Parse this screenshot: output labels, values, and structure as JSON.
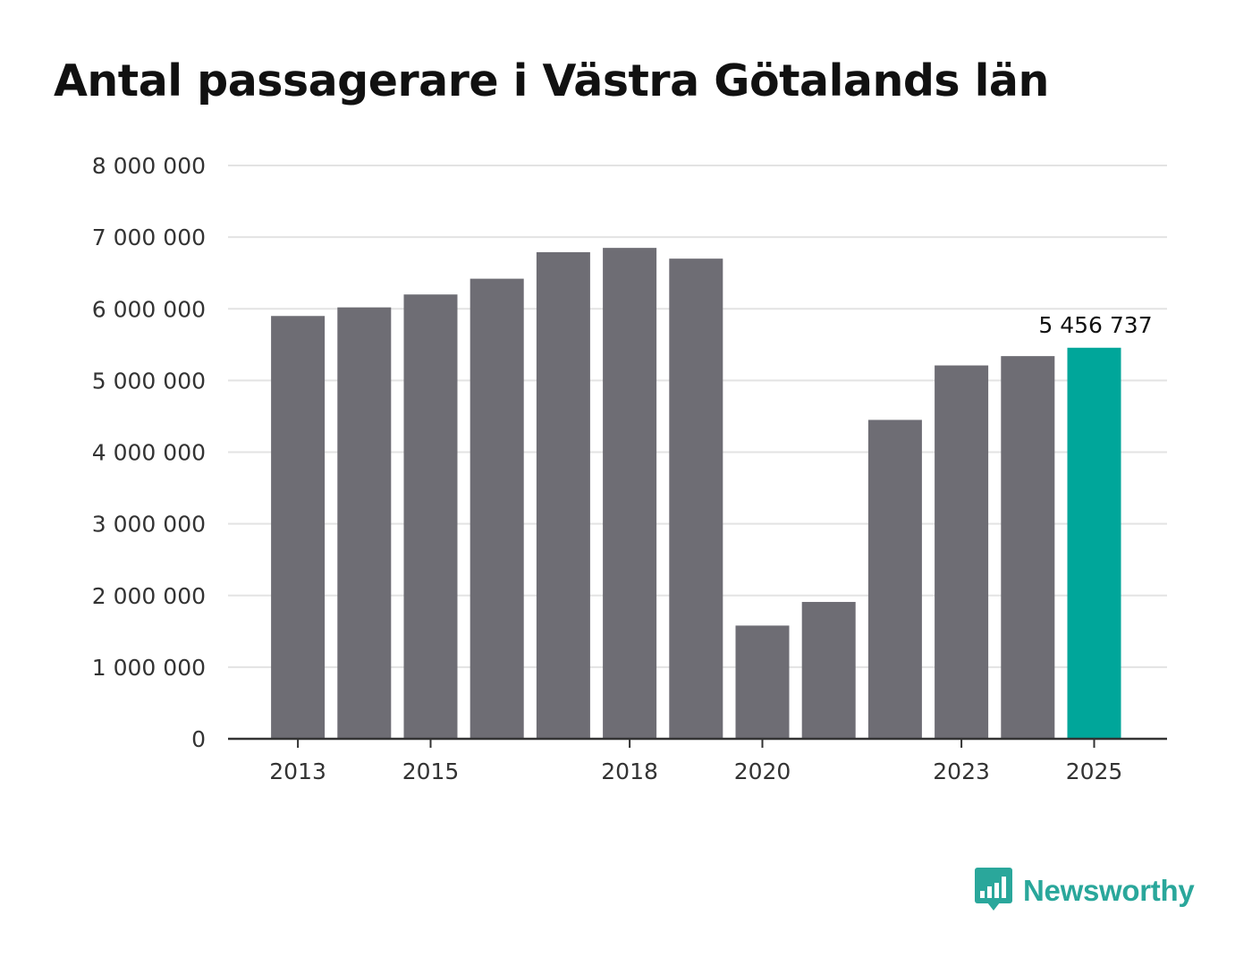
{
  "brand": {
    "name": "Newsworthy",
    "icon": "bar-chart-speech-bubble-icon",
    "color": "#2aa79b"
  },
  "colors": {
    "bar": "#6e6d74",
    "highlight": "#00a69a",
    "grid": "#e3e3e3",
    "axis": "#333333",
    "text": "#333333"
  },
  "chart_data": {
    "type": "bar",
    "title": "Antal passagerare i Västra Götalands län",
    "xlabel": "",
    "ylabel": "",
    "ylim": [
      0,
      8000000
    ],
    "yticks": [
      0,
      1000000,
      2000000,
      3000000,
      4000000,
      5000000,
      6000000,
      7000000,
      8000000
    ],
    "ytick_labels": [
      "0",
      "1 000 000",
      "2 000 000",
      "3 000 000",
      "4 000 000",
      "5 000 000",
      "6 000 000",
      "7 000 000",
      "8 000 000"
    ],
    "categories": [
      "2013",
      "2014",
      "2015",
      "2016",
      "2017",
      "2018",
      "2019",
      "2020",
      "2021",
      "2022",
      "2023",
      "2024",
      "2025"
    ],
    "values": [
      5900000,
      6020000,
      6200000,
      6420000,
      6790000,
      6850000,
      6700000,
      1580000,
      1910000,
      4450000,
      5210000,
      5340000,
      5456737
    ],
    "xtick_labels": [
      "2013",
      "2015",
      "2018",
      "2020",
      "2023",
      "2025"
    ],
    "highlight_category": "2025",
    "highlight_label": "5 456 737",
    "grid": true,
    "legend": "none"
  }
}
